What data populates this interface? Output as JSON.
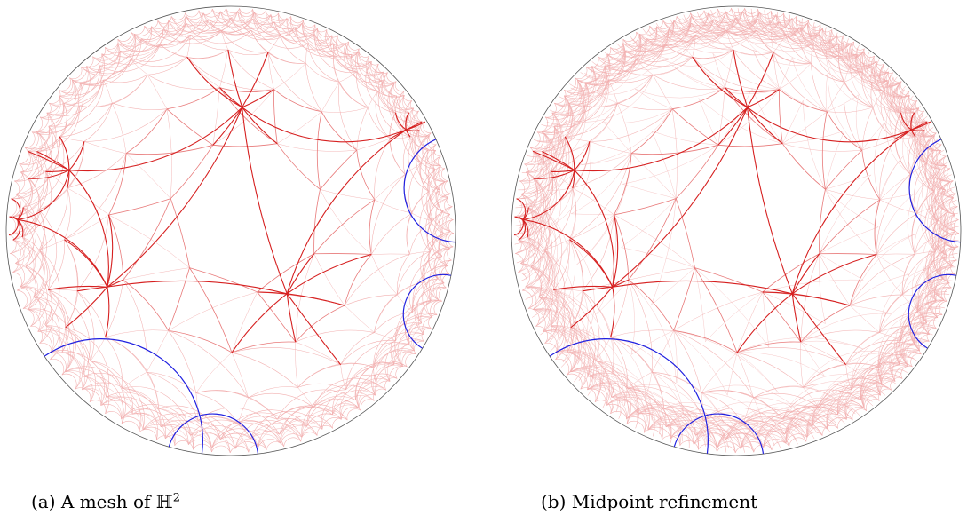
{
  "figure": {
    "panels": [
      {
        "id": "a",
        "caption_prefix": "(a) A mesh of ",
        "caption_symbol": "ℍ",
        "caption_exponent": "2",
        "refinement_levels": 1
      },
      {
        "id": "b",
        "caption_prefix": "(b) Midpoint refinement",
        "caption_symbol": "",
        "caption_exponent": "",
        "refinement_levels": 2
      }
    ],
    "colors": {
      "boundary": "#555555",
      "primary_edges": "#d62020",
      "secondary_edges": "#e87a7a",
      "fine_edges": "#f2b0b0",
      "highlight_arcs": "#2020e0"
    }
  }
}
